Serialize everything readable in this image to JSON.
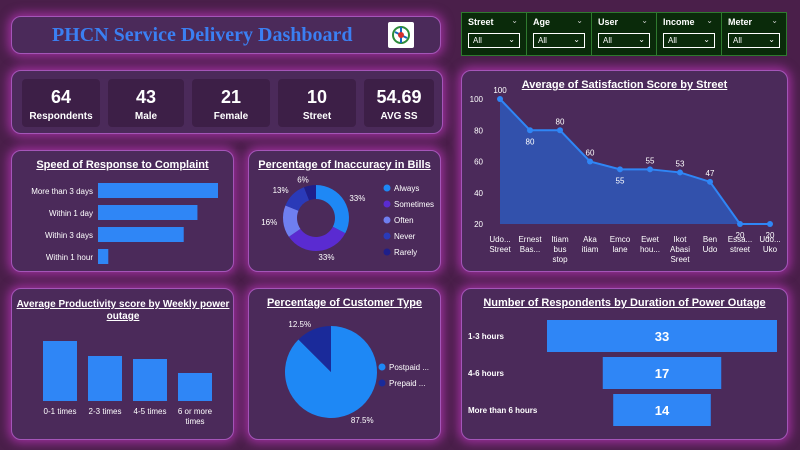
{
  "header": {
    "title": "PHCN Service Delivery Dashboard"
  },
  "slicers": [
    {
      "label": "Street",
      "value": "All"
    },
    {
      "label": "Age",
      "value": "All"
    },
    {
      "label": "User",
      "value": "All"
    },
    {
      "label": "Income",
      "value": "All"
    },
    {
      "label": "Meter",
      "value": "All"
    }
  ],
  "kpis": [
    {
      "value": "64",
      "label": "Respondents"
    },
    {
      "value": "43",
      "label": "Male"
    },
    {
      "value": "21",
      "label": "Female"
    },
    {
      "value": "10",
      "label": "Street"
    },
    {
      "value": "54.69",
      "label": "AVG SS"
    }
  ],
  "colors": {
    "primary_bar": "#2f86f6",
    "donut": [
      "#1e88f5",
      "#5a2bd1",
      "#6f7ff0",
      "#2a3ab8",
      "#1f1f8a"
    ],
    "pie": [
      "#1e88f5",
      "#1a2a9a"
    ],
    "area_fill": "#2a5fc8",
    "line": "#2f86f6"
  },
  "chart_data": [
    {
      "id": "speed",
      "type": "bar",
      "orientation": "horizontal",
      "title": "Speed of Response to Complaint",
      "categories": [
        "More than 3 days",
        "Within 1 day",
        "Within 3 days",
        "Within 1 hour"
      ],
      "values": [
        35,
        29,
        25,
        3
      ]
    },
    {
      "id": "inaccuracy",
      "type": "pie",
      "variant": "donut",
      "title": "Percentage of Inaccuracy in Bills",
      "categories": [
        "Always",
        "Sometimes",
        "Often",
        "Never",
        "Rarely"
      ],
      "values": [
        33,
        33,
        16,
        13,
        6
      ],
      "labels": [
        "33%",
        "33%",
        "16%",
        "13%",
        "6%"
      ],
      "legend": "right"
    },
    {
      "id": "satisfaction",
      "type": "area",
      "title": "Average of Satisfaction Score by Street",
      "categories": [
        "Udo... Street",
        "Ernest Bas...",
        "Itiam bus stop",
        "Aka itiam",
        "Emco lane",
        "Ewet hou...",
        "Ikot Abasi Sreet",
        "Ben Udo",
        "Essa... street",
        "Udo... Uko"
      ],
      "category_lines": [
        [
          "Udo...",
          "Street"
        ],
        [
          "Ernest",
          "Bas..."
        ],
        [
          "Itiam",
          "bus",
          "stop"
        ],
        [
          "Aka",
          "itiam"
        ],
        [
          "Emco",
          "lane"
        ],
        [
          "Ewet",
          "hou..."
        ],
        [
          "Ikot",
          "Abasi",
          "Sreet"
        ],
        [
          "Ben",
          "Udo"
        ],
        [
          "Essa...",
          "street"
        ],
        [
          "Udo...",
          "Uko"
        ]
      ],
      "values": [
        100,
        80,
        80,
        60,
        55,
        55,
        53,
        47,
        20,
        20
      ],
      "ylim": [
        20,
        100
      ],
      "yticks": [
        20,
        40,
        60,
        80,
        100
      ],
      "grid": false
    },
    {
      "id": "productivity",
      "type": "bar",
      "orientation": "vertical",
      "title": "Average Productivity score by Weekly power outage",
      "title_lines": [
        "Average Productivity score by Weekly power",
        "outage"
      ],
      "categories": [
        "0-1 times",
        "2-3 times",
        "4-5 times",
        "6 or more times"
      ],
      "category_lines": [
        [
          "0-1 times"
        ],
        [
          "2-3 times"
        ],
        [
          "4-5 times"
        ],
        [
          "6 or more",
          "times"
        ]
      ],
      "values": [
        60,
        45,
        42,
        28
      ]
    },
    {
      "id": "customer",
      "type": "pie",
      "title": "Percentage of Customer Type",
      "categories": [
        "Postpaid ...",
        "Prepaid ..."
      ],
      "values": [
        87.5,
        12.5
      ],
      "labels": [
        "87.5%",
        "12.5%"
      ],
      "legend": "right"
    },
    {
      "id": "duration",
      "type": "bar",
      "orientation": "horizontal",
      "variant": "funnel",
      "title": "Number of Respondents by Duration of Power Outage",
      "categories": [
        "1-3 hours",
        "4-6 hours",
        "More than 6 hours"
      ],
      "values": [
        33,
        17,
        14
      ]
    }
  ]
}
